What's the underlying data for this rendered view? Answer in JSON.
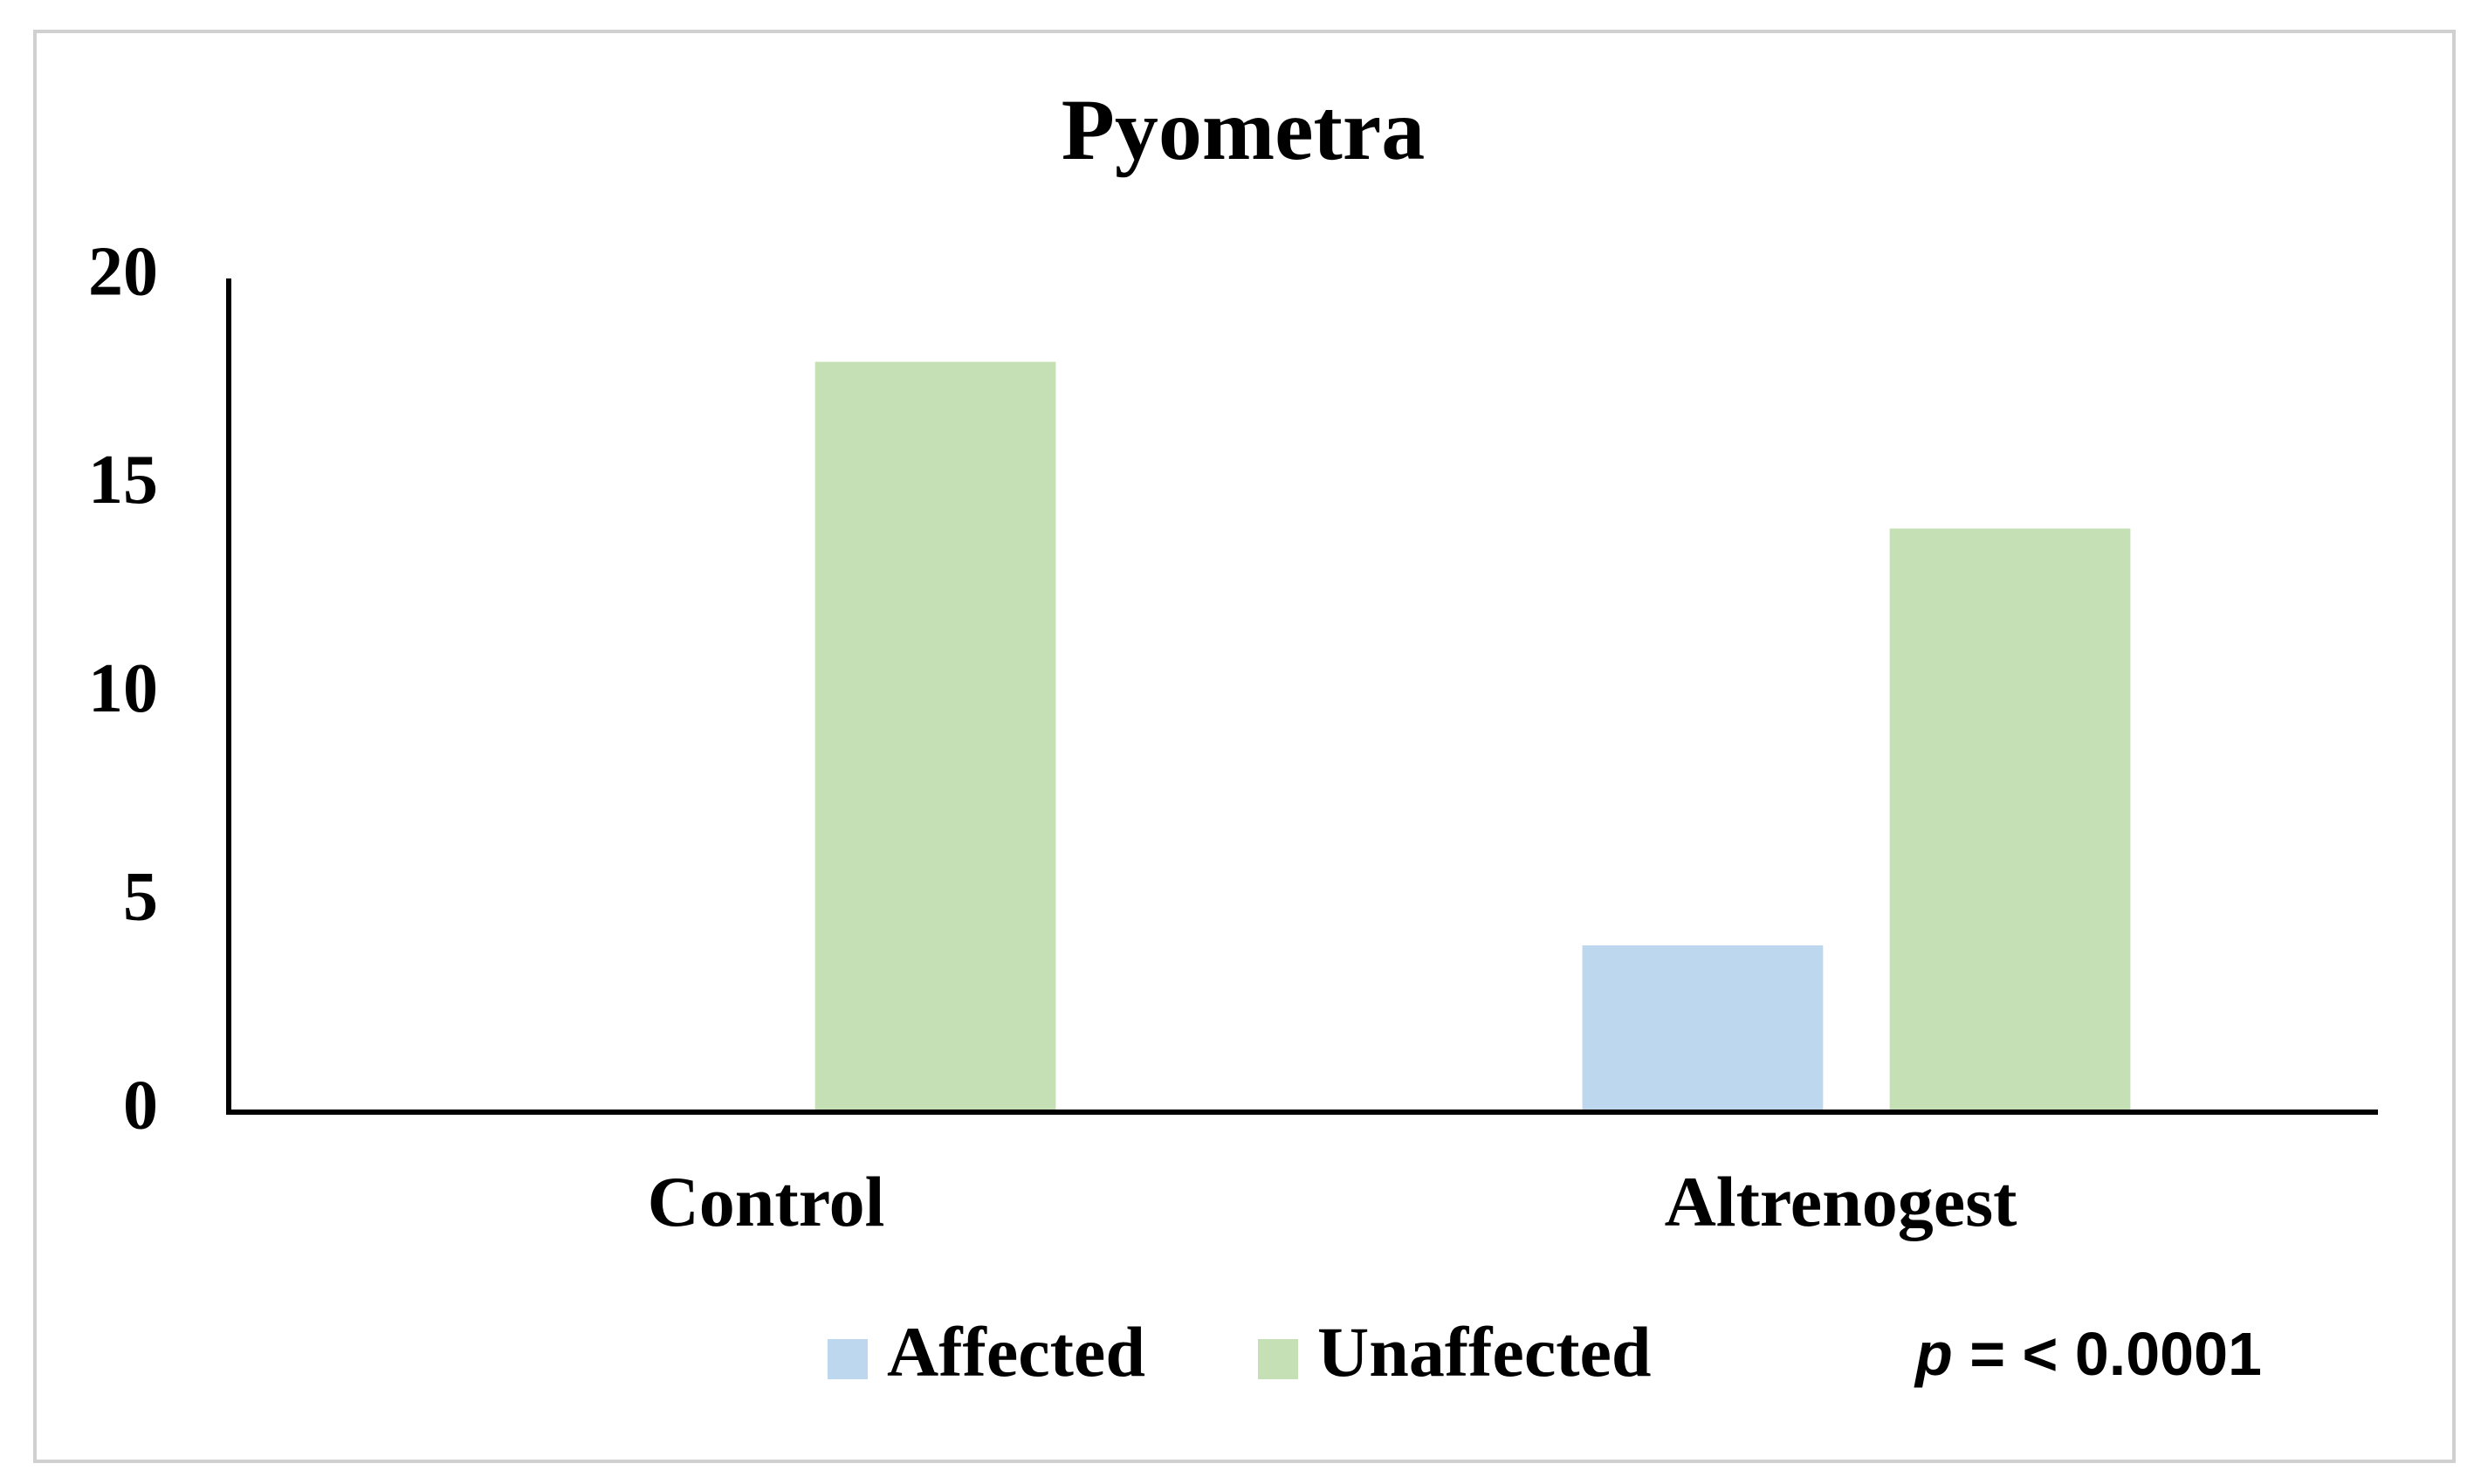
{
  "chart_data": {
    "type": "bar",
    "title": "Pyometra",
    "categories": [
      "Control",
      "Altrenogest"
    ],
    "series": [
      {
        "name": "Affected",
        "color": "#bdd7ee",
        "values": [
          0,
          4
        ]
      },
      {
        "name": "Unaffected",
        "color": "#c5e0b4",
        "values": [
          18,
          14
        ]
      }
    ],
    "ylim": [
      0,
      20
    ],
    "yticks": [
      0,
      5,
      10,
      15,
      20
    ],
    "grid": false,
    "legend": "bottom",
    "annotation": [
      "p",
      "= < 0.0001"
    ]
  }
}
